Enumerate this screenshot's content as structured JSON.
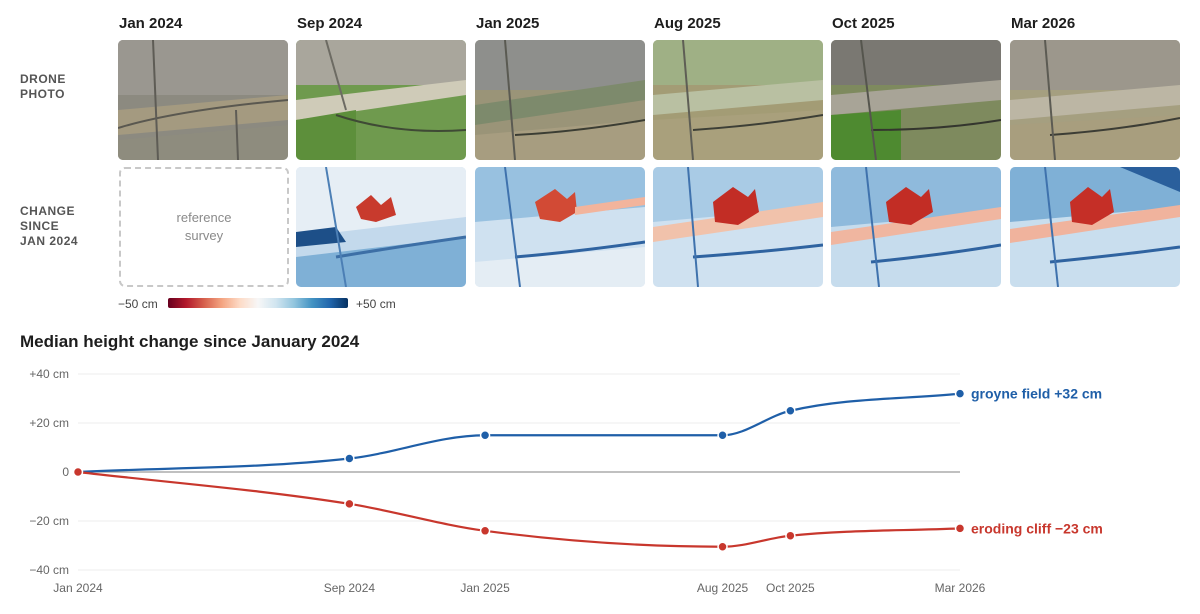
{
  "dates": [
    "Jan 2024",
    "Sep 2024",
    "Jan 2025",
    "Aug 2025",
    "Oct 2025",
    "Mar 2026"
  ],
  "row_labels": {
    "drone": "DRONE\nPHOTO",
    "change": "CHANGE\nSINCE\nJAN 2024"
  },
  "reference_text": "reference\nsurvey",
  "colorbar": {
    "min_label": "−50 cm",
    "max_label": "+50 cm",
    "min_color": "#b2182b",
    "max_color": "#2166ac"
  },
  "chart_title": "Median height change since January 2024",
  "chart_data": {
    "type": "line",
    "x": [
      "Jan 2024",
      "Sep 2024",
      "Jan 2025",
      "Aug 2025",
      "Oct 2025",
      "Mar 2026"
    ],
    "x_months": [
      0,
      8,
      12,
      19,
      21,
      26
    ],
    "ylim": [
      -40,
      40
    ],
    "yticks": [
      {
        "value": 40,
        "label": "+40 cm"
      },
      {
        "value": 20,
        "label": "+20 cm"
      },
      {
        "value": 0,
        "label": "0"
      },
      {
        "value": -20,
        "label": "−20 cm"
      },
      {
        "value": -40,
        "label": "−40 cm"
      }
    ],
    "grid": true,
    "series": [
      {
        "name": "groyne field",
        "end_label": "groyne field +32 cm",
        "color": "#1f5fa8",
        "values": [
          0,
          5.5,
          15,
          15,
          25,
          32
        ]
      },
      {
        "name": "eroding cliff",
        "end_label": "eroding cliff −23 cm",
        "color": "#c8372d",
        "values": [
          0,
          -13,
          -24,
          -30.5,
          -26,
          -23
        ]
      }
    ]
  },
  "colors": {
    "blue": "#1f5fa8",
    "red": "#c8372d",
    "grid": "#ececec",
    "zero_line": "#9a9a9a"
  }
}
